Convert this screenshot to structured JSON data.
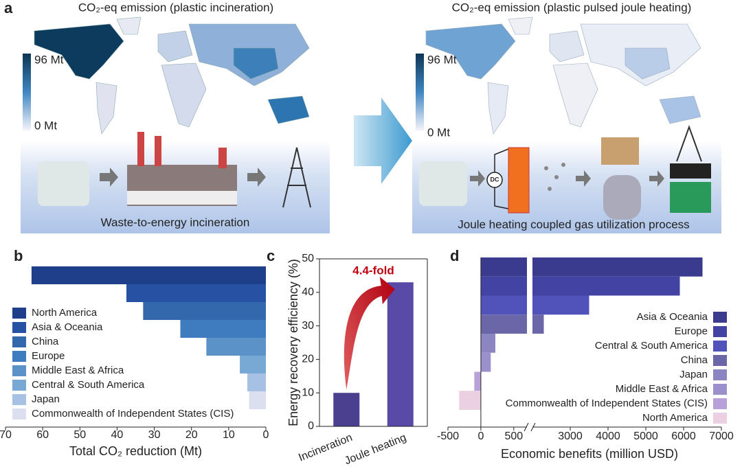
{
  "panel_labels": [
    "a",
    "b",
    "c",
    "d"
  ],
  "panel_a": {
    "left_title": "CO₂-eq emission (plastic incineration)",
    "right_title": "CO₂-eq emission (plastic pulsed joule heating)",
    "colorbar_max": "96 Mt",
    "colorbar_min": "0 Mt",
    "left_caption": "Waste-to-energy incineration",
    "right_caption": "Joule heating coupled gas utilization process",
    "dc_label": "DC"
  },
  "chart_data": [
    {
      "type": "hbar",
      "categories": [
        "North America",
        "Asia & Oceania",
        "China",
        "Europe",
        "Middle East & Africa",
        "Central & South America",
        "Japan",
        "Commonwealth of Independent States (CIS)"
      ],
      "values": [
        63,
        37.5,
        33,
        23,
        16,
        7,
        5,
        4.5
      ],
      "colors": [
        "#1f3f8a",
        "#2752a3",
        "#3468ad",
        "#3f7bbf",
        "#5b93c8",
        "#78a8d4",
        "#a6c1e4",
        "#dcdff0"
      ],
      "xlim": [
        0,
        70
      ],
      "x_reversed": true,
      "xticks": [
        70,
        60,
        50,
        40,
        30,
        20,
        10,
        0
      ],
      "xlabel": "Total CO₂ reduction (Mt)",
      "legend": "lower left"
    },
    {
      "type": "bar",
      "categories": [
        "Incineration",
        "Joule heating"
      ],
      "values": [
        10,
        43
      ],
      "colors": [
        "#4b3f8f",
        "#5a4aa8"
      ],
      "ylim": [
        0,
        50
      ],
      "yticks": [
        0,
        10,
        20,
        30,
        40,
        50
      ],
      "ylabel": "Energy recovery efficiency (%)",
      "annotation": "4.4-fold"
    },
    {
      "type": "hbar_broken",
      "categories": [
        "Asia & Oceania",
        "Europe",
        "Central & South America",
        "China",
        "Japan",
        "Middle East & Africa",
        "Commonwealth of Independent States (CIS)",
        "North America"
      ],
      "values": [
        6500,
        5900,
        3500,
        2300,
        220,
        150,
        -100,
        -330
      ],
      "colors": [
        "#3a3a8e",
        "#4343a3",
        "#5252bb",
        "#6a66a8",
        "#8b86c2",
        "#9b8fcc",
        "#b8a0d8",
        "#ebd0e2"
      ],
      "xlim": [
        -500,
        7000
      ],
      "axis_break": [
        700,
        2000
      ],
      "xticks": [
        -500,
        0,
        500,
        3000,
        4000,
        5000,
        6000,
        7000
      ],
      "xlabel": "Economic benefits (million USD)",
      "legend": "lower right"
    }
  ]
}
